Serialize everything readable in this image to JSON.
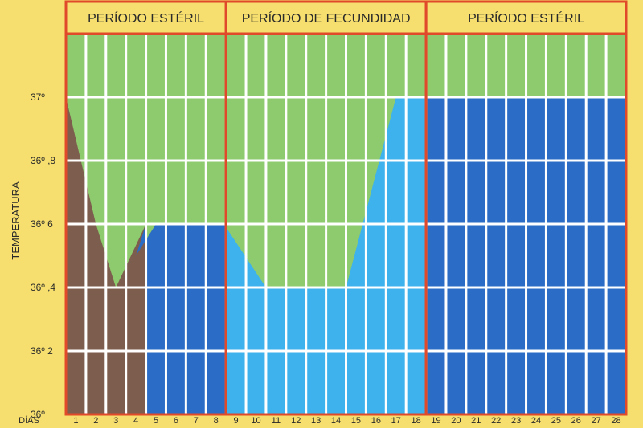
{
  "colors": {
    "background": "#f6df6e",
    "green": "#8ecb6e",
    "brown": "#7d5e4e",
    "dark_blue": "#2a6cc6",
    "light_blue": "#3db2ec",
    "grid": "#ffffff",
    "border": "#e04a2a"
  },
  "periods": [
    {
      "label": "PERÍODO ESTÉRIL",
      "from_day": 1,
      "to_day": 8
    },
    {
      "label": "PERÍODO DE FECUNDIDAD",
      "from_day": 9,
      "to_day": 18
    },
    {
      "label": "PERÍODO ESTÉRIL",
      "from_day": 19,
      "to_day": 28
    }
  ],
  "chart_data": {
    "type": "area",
    "ylabel": "TEMPERATURA",
    "xlabel": "DÍAS",
    "x": [
      1,
      2,
      3,
      4,
      5,
      6,
      7,
      8,
      9,
      10,
      11,
      12,
      13,
      14,
      15,
      16,
      17,
      18,
      19,
      20,
      21,
      22,
      23,
      24,
      25,
      26,
      27,
      28
    ],
    "y_ticks": [
      {
        "value": 36.0,
        "label": "36º"
      },
      {
        "value": 36.2,
        "label": "36º 2"
      },
      {
        "value": 36.4,
        "label": "36º ,4"
      },
      {
        "value": 36.6,
        "label": "36º 6"
      },
      {
        "value": 36.8,
        "label": "36º ,8"
      },
      {
        "value": 37.0,
        "label": "37º"
      }
    ],
    "ylim": [
      36.0,
      37.2
    ],
    "regions": [
      {
        "color_key": "brown",
        "points": [
          [
            0.5,
            37.0
          ],
          [
            2.0,
            36.6
          ],
          [
            3.0,
            36.4
          ],
          [
            4.5,
            36.6
          ],
          [
            4.5,
            36.0
          ],
          [
            0.5,
            36.0
          ]
        ]
      },
      {
        "color_key": "dark_blue",
        "points": [
          [
            4.0,
            36.5
          ],
          [
            5.0,
            36.6
          ],
          [
            8.5,
            36.6
          ],
          [
            8.5,
            36.0
          ],
          [
            4.5,
            36.0
          ],
          [
            4.5,
            36.6
          ]
        ]
      },
      {
        "color_key": "light_blue",
        "points": [
          [
            8.5,
            36.59
          ],
          [
            10.5,
            36.4
          ],
          [
            14.5,
            36.4
          ],
          [
            17.0,
            37.0
          ],
          [
            18.5,
            37.0
          ],
          [
            18.5,
            36.0
          ],
          [
            8.5,
            36.0
          ]
        ]
      },
      {
        "color_key": "dark_blue",
        "points": [
          [
            18.5,
            37.0
          ],
          [
            28.5,
            37.0
          ],
          [
            28.5,
            36.0
          ],
          [
            18.5,
            36.0
          ]
        ]
      }
    ],
    "grid": true
  }
}
